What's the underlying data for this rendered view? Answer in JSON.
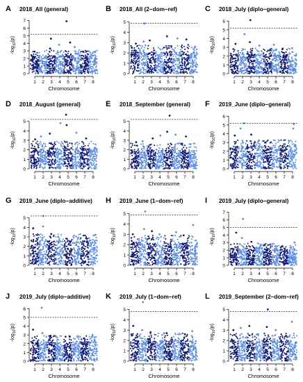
{
  "figure": {
    "colors": {
      "dark": "#0d1a7a",
      "light": "#5b8de8",
      "threshold": "#000000",
      "axis": "#000000"
    },
    "panels": [
      {
        "letter": "A",
        "title": "2018_All (general)"
      },
      {
        "letter": "B",
        "title": "2018_All (2−dom−ref)"
      },
      {
        "letter": "C",
        "title": "2018_July (diplo−general)"
      },
      {
        "letter": "D",
        "title": "2018_August (general)"
      },
      {
        "letter": "E",
        "title": "2018_September (general)"
      },
      {
        "letter": "F",
        "title": "2019_June (diplo−general)"
      },
      {
        "letter": "G",
        "title": "2019_June (diplo−additive)"
      },
      {
        "letter": "H",
        "title": "2019_June (1−dom−ref)"
      },
      {
        "letter": "I",
        "title": "2019_July (diplo−general)"
      },
      {
        "letter": "J",
        "title": "2019_July (diplo−additive)"
      },
      {
        "letter": "K",
        "title": "2019_July (1−dom−ref)"
      },
      {
        "letter": "L",
        "title": "2019_September (2−dom−ref)"
      }
    ]
  },
  "chart_data": [
    {
      "type": "scatter",
      "title": "2018_All (general)",
      "xlabel": "Chromosome",
      "ylabel": "-log10(p)",
      "x_ticks": [
        "1",
        "2",
        "3",
        "4",
        "5",
        "6",
        "7",
        "8"
      ],
      "y_ticks": [
        0,
        1,
        2,
        3,
        4,
        5,
        6,
        7
      ],
      "ylim": [
        0,
        7.5
      ],
      "threshold": 5.2,
      "base_max": 2.4,
      "tops": [
        [
          1,
          2.9
        ],
        [
          3,
          4.6
        ],
        [
          3,
          3.3
        ],
        [
          4,
          3.8
        ],
        [
          5,
          6.9
        ],
        [
          5,
          4.1
        ],
        [
          6,
          3.5
        ],
        [
          7,
          2.9
        ]
      ]
    },
    {
      "type": "scatter",
      "title": "2018_All (2−dom−ref)",
      "xlabel": "Chromosome",
      "ylabel": "-log10(p)",
      "x_ticks": [
        "1",
        "2",
        "3",
        "4",
        "5",
        "6",
        "7",
        "8"
      ],
      "y_ticks": [
        0,
        1,
        2,
        3,
        4,
        5
      ],
      "ylim": [
        0,
        5.5
      ],
      "threshold": 4.85,
      "base_max": 2.1,
      "tops": [
        [
          1,
          2.9
        ],
        [
          2,
          4.85
        ],
        [
          2,
          3.1
        ],
        [
          3,
          3.2
        ],
        [
          5,
          3.6
        ],
        [
          6,
          3.4
        ],
        [
          7,
          3.3
        ],
        [
          8,
          2.6
        ]
      ]
    },
    {
      "type": "scatter",
      "title": "2018_July (diplo−general)",
      "xlabel": "Chromosome",
      "ylabel": "-log10(p)",
      "x_ticks": [
        "1",
        "2",
        "3",
        "4",
        "5",
        "6",
        "7",
        "8"
      ],
      "y_ticks": [
        0,
        1,
        2,
        3,
        4,
        5,
        6
      ],
      "ylim": [
        0,
        6.5
      ],
      "threshold": 5.2,
      "base_max": 2.2,
      "tops": [
        [
          1,
          3.4
        ],
        [
          2,
          4.5
        ],
        [
          3,
          6.1
        ],
        [
          3,
          3.6
        ],
        [
          4,
          3.2
        ],
        [
          6,
          3.3
        ],
        [
          7,
          2.8
        ],
        [
          8,
          2.9
        ]
      ]
    },
    {
      "type": "scatter",
      "title": "2018_August (general)",
      "xlabel": "Chromosome",
      "ylabel": "-log10(p)",
      "x_ticks": [
        "1",
        "2",
        "3",
        "4",
        "5",
        "6",
        "7",
        "8"
      ],
      "y_ticks": [
        0,
        1,
        2,
        3,
        4,
        5
      ],
      "ylim": [
        0,
        6
      ],
      "threshold": 5.2,
      "base_max": 2.2,
      "tops": [
        [
          1,
          3.1
        ],
        [
          2,
          3.4
        ],
        [
          3,
          3.7
        ],
        [
          4,
          4.8
        ],
        [
          5,
          5.7
        ],
        [
          5,
          4.6
        ],
        [
          6,
          3.8
        ],
        [
          7,
          3.2
        ]
      ]
    },
    {
      "type": "scatter",
      "title": "2018_September (general)",
      "xlabel": "Chromosome",
      "ylabel": "-log10(p)",
      "x_ticks": [
        "1",
        "2",
        "3",
        "4",
        "5",
        "6",
        "7",
        "8"
      ],
      "y_ticks": [
        0,
        1,
        2,
        3,
        4,
        5
      ],
      "ylim": [
        0,
        6
      ],
      "threshold": 5.2,
      "base_max": 2.0,
      "tops": [
        [
          1,
          2.8
        ],
        [
          2,
          2.9
        ],
        [
          3,
          3.2
        ],
        [
          4,
          3.5
        ],
        [
          5,
          5.6
        ],
        [
          5,
          3.9
        ],
        [
          6,
          3.6
        ],
        [
          7,
          3.4
        ]
      ]
    },
    {
      "type": "scatter",
      "title": "2019_June (diplo−general)",
      "xlabel": "Chromosome",
      "ylabel": "-log10(p)",
      "x_ticks": [
        "1",
        "2",
        "3",
        "4",
        "5",
        "6",
        "7",
        "8"
      ],
      "y_ticks": [
        0,
        1,
        2,
        3,
        4,
        5,
        6
      ],
      "ylim": [
        0,
        6.5
      ],
      "threshold": 5.2,
      "base_max": 2.6,
      "tops": [
        [
          1,
          3.8
        ],
        [
          2,
          5.2
        ],
        [
          2,
          4.6
        ],
        [
          3,
          3.9
        ],
        [
          4,
          3.2
        ],
        [
          5,
          3.0
        ],
        [
          8,
          5.1
        ],
        [
          8,
          4.6
        ]
      ]
    },
    {
      "type": "scatter",
      "title": "2019_June (diplo−additive)",
      "xlabel": "Chromosome",
      "ylabel": "-log10(p)",
      "x_ticks": [
        "1",
        "2",
        "3",
        "4",
        "5",
        "6",
        "7",
        "8"
      ],
      "y_ticks": [
        0,
        1,
        2,
        3,
        4,
        5
      ],
      "ylim": [
        0,
        6
      ],
      "threshold": 5.2,
      "base_max": 2.6,
      "tops": [
        [
          1,
          3.9
        ],
        [
          2,
          5.2
        ],
        [
          2,
          4.1
        ],
        [
          3,
          3.3
        ],
        [
          4,
          3.0
        ],
        [
          6,
          2.9
        ],
        [
          8,
          3.2
        ]
      ]
    },
    {
      "type": "scatter",
      "title": "2019_June (1−dom−ref)",
      "xlabel": "Chromosome",
      "ylabel": "-log10(p)",
      "x_ticks": [
        "1",
        "2",
        "3",
        "4",
        "5",
        "6",
        "7",
        "8"
      ],
      "y_ticks": [
        0,
        1,
        2,
        3,
        4,
        5
      ],
      "ylim": [
        0,
        5.5
      ],
      "threshold": 4.85,
      "base_max": 2.2,
      "tops": [
        [
          1,
          3.0
        ],
        [
          2,
          5.2
        ],
        [
          2,
          3.5
        ],
        [
          3,
          3.3
        ],
        [
          4,
          3.0
        ],
        [
          6,
          3.2
        ],
        [
          7,
          2.9
        ],
        [
          8,
          3.9
        ]
      ]
    },
    {
      "type": "scatter",
      "title": "2019_July (diplo−general)",
      "xlabel": "Chromosome",
      "ylabel": "-log10(p)",
      "x_ticks": [
        "1",
        "2",
        "3",
        "4",
        "5",
        "6",
        "7",
        "8"
      ],
      "y_ticks": [
        0,
        1,
        2,
        3,
        4,
        5,
        6,
        7
      ],
      "ylim": [
        0,
        7.5
      ],
      "threshold": 5.0,
      "base_max": 2.2,
      "tops": [
        [
          1,
          4.3
        ],
        [
          2,
          6.1
        ],
        [
          2,
          3.6
        ],
        [
          3,
          3.1
        ],
        [
          4,
          2.6
        ],
        [
          6,
          2.5
        ],
        [
          8,
          3.0
        ]
      ]
    },
    {
      "type": "scatter",
      "title": "2019_July (diplo−additive)",
      "xlabel": "Chromosome",
      "ylabel": "-log10(p)",
      "x_ticks": [
        "1",
        "2",
        "3",
        "4",
        "5",
        "6",
        "7",
        "8"
      ],
      "y_ticks": [
        0,
        1,
        2,
        3,
        4,
        5,
        6
      ],
      "ylim": [
        0,
        6.5
      ],
      "threshold": 5.0,
      "base_max": 2.2,
      "tops": [
        [
          1,
          3.6
        ],
        [
          2,
          6.1
        ],
        [
          2,
          3.2
        ],
        [
          3,
          2.9
        ],
        [
          5,
          2.8
        ],
        [
          7,
          2.6
        ],
        [
          8,
          3.0
        ]
      ]
    },
    {
      "type": "scatter",
      "title": "2019_July (1−dom−ref)",
      "xlabel": "Chromosome",
      "ylabel": "-log10(p)",
      "x_ticks": [
        "1",
        "2",
        "3",
        "4",
        "5",
        "6",
        "7",
        "8"
      ],
      "y_ticks": [
        0,
        1,
        2,
        3,
        4,
        5
      ],
      "ylim": [
        0,
        5.5
      ],
      "threshold": 4.8,
      "base_max": 2.0,
      "tops": [
        [
          1,
          3.4
        ],
        [
          2,
          5.7
        ],
        [
          2,
          3.0
        ],
        [
          3,
          2.8
        ],
        [
          5,
          2.7
        ],
        [
          7,
          2.6
        ],
        [
          8,
          2.9
        ]
      ]
    },
    {
      "type": "scatter",
      "title": "2019_September (2−dom−ref)",
      "xlabel": "Chromosome",
      "ylabel": "-log10(p)",
      "x_ticks": [
        "1",
        "2",
        "3",
        "4",
        "5",
        "6",
        "7",
        "8"
      ],
      "y_ticks": [
        0,
        1,
        2,
        3,
        4,
        5
      ],
      "ylim": [
        0,
        5.5
      ],
      "threshold": 4.8,
      "base_max": 2.0,
      "tops": [
        [
          1,
          3.0
        ],
        [
          2,
          3.2
        ],
        [
          3,
          3.4
        ],
        [
          5,
          5.0
        ],
        [
          5,
          3.3
        ],
        [
          6,
          3.0
        ],
        [
          8,
          3.8
        ]
      ]
    }
  ]
}
